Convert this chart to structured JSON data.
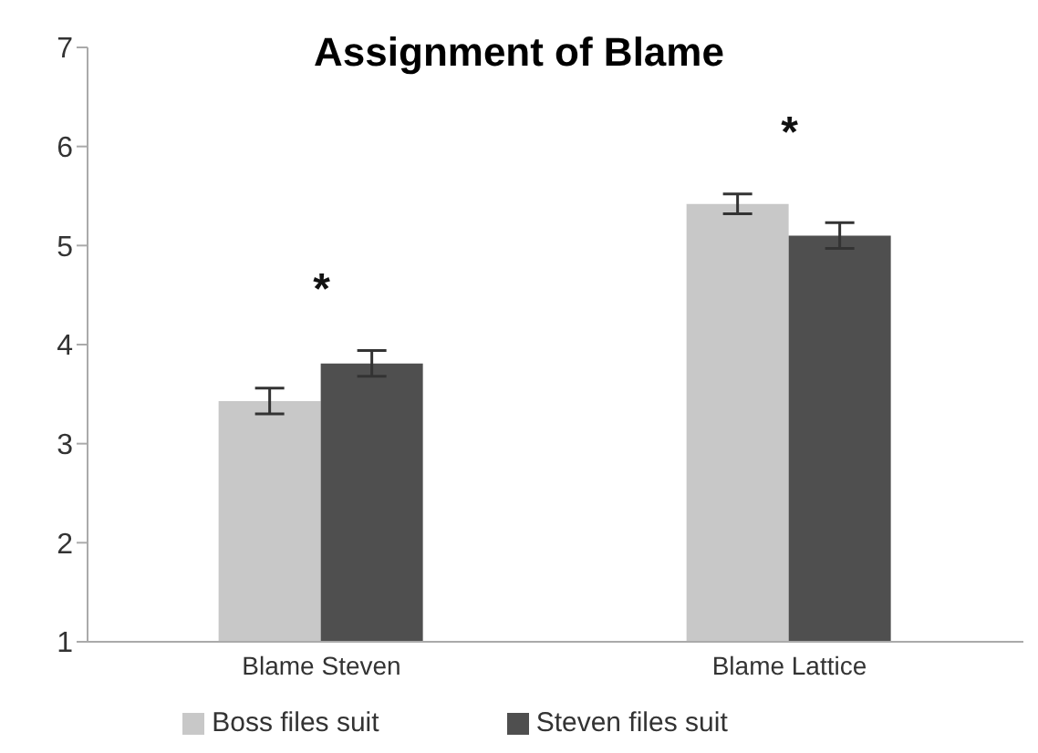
{
  "chart_data": {
    "type": "bar",
    "title": "Assignment of Blame",
    "categories": [
      "Blame Steven",
      "Blame Lattice"
    ],
    "series": [
      {
        "name": "Boss files suit",
        "color": "#c8c8c8",
        "values": [
          3.43,
          5.42
        ],
        "errors": [
          0.13,
          0.1
        ]
      },
      {
        "name": "Steven files suit",
        "color": "#4f4f4f",
        "values": [
          3.81,
          5.1
        ],
        "errors": [
          0.13,
          0.13
        ]
      }
    ],
    "ylim": [
      1,
      7
    ],
    "yticks": [
      1,
      2,
      3,
      4,
      5,
      6,
      7
    ],
    "grid": false,
    "legend": "bottom",
    "annotations": [
      "*",
      "*"
    ]
  }
}
